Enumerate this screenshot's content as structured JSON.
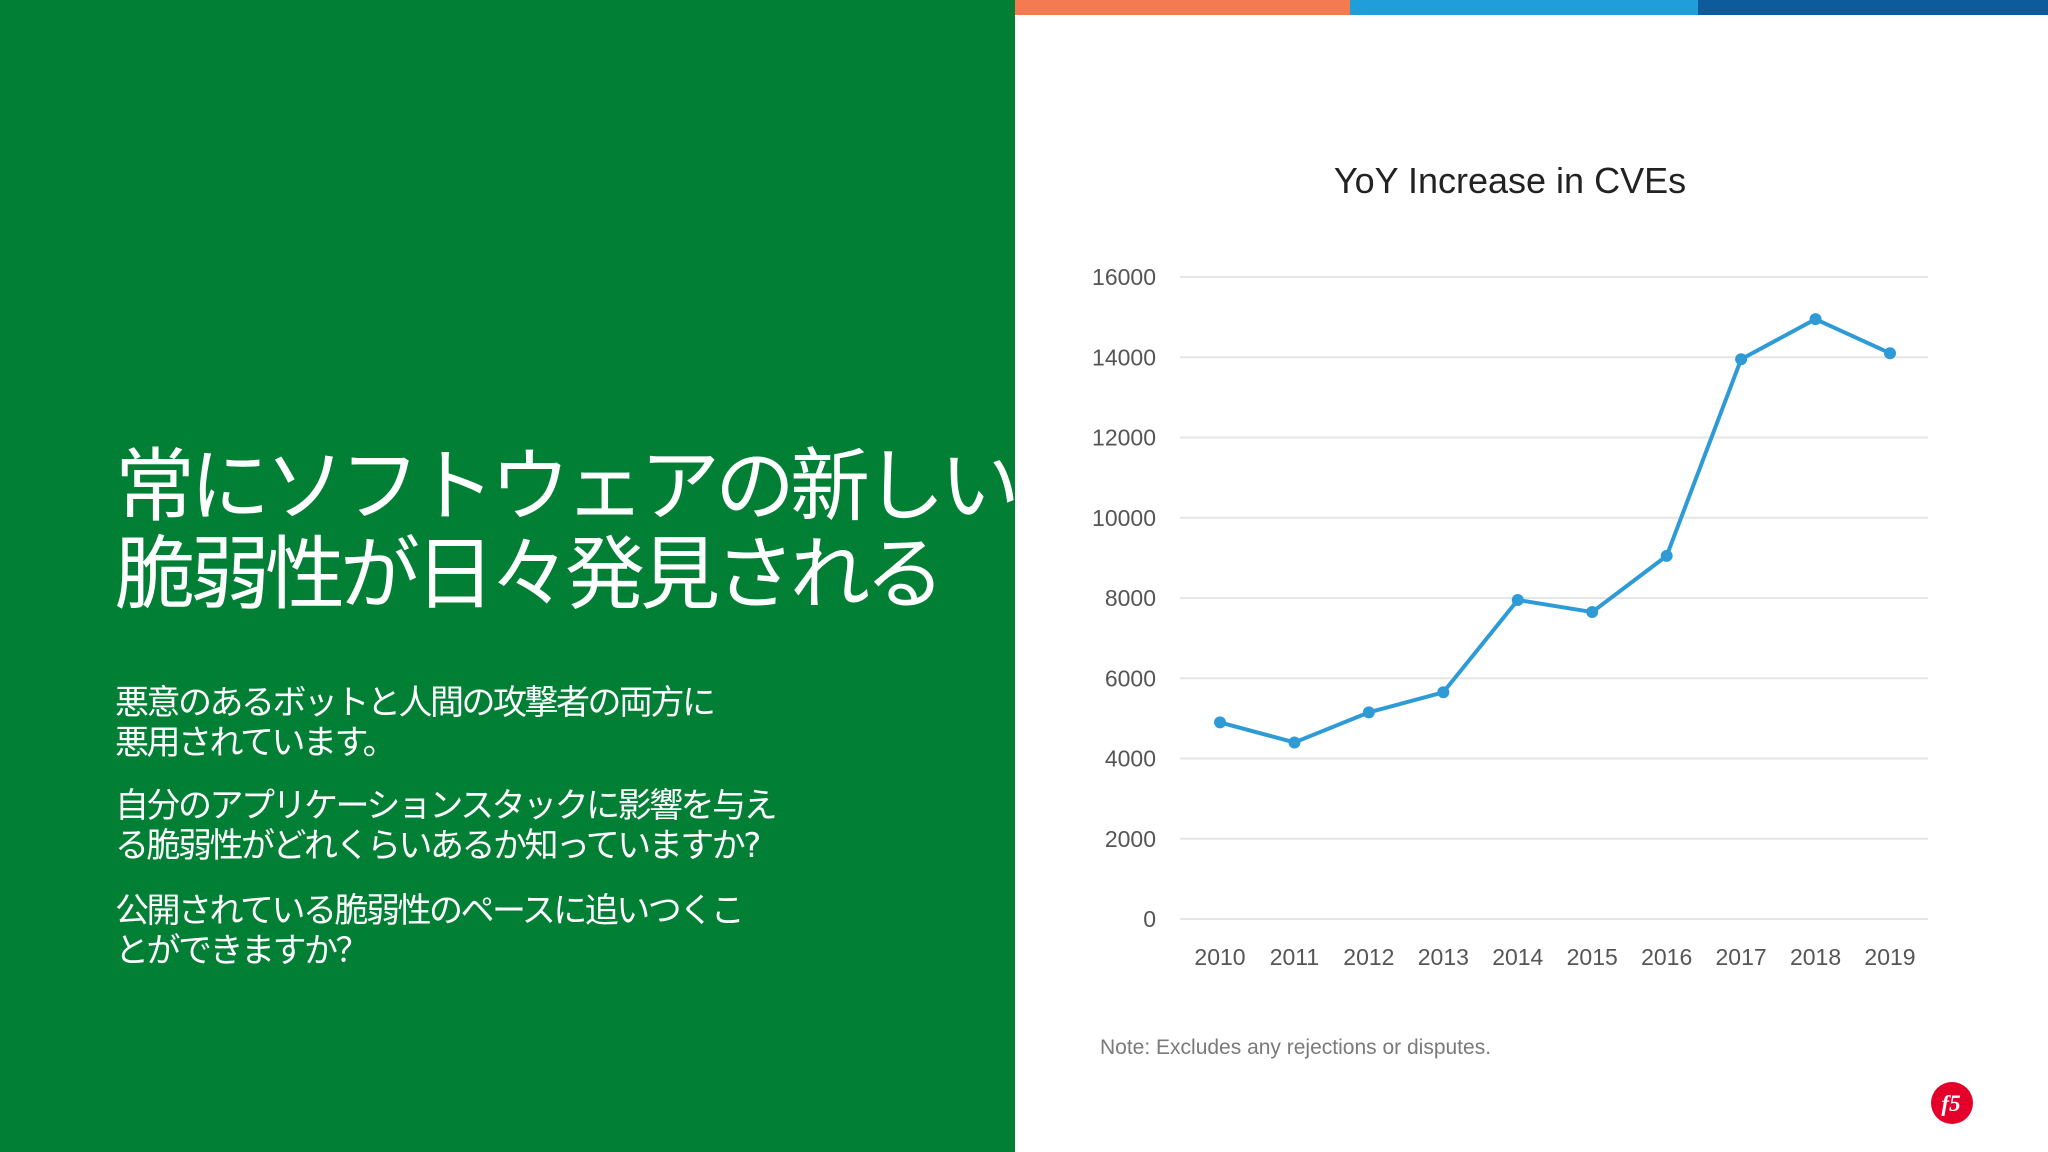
{
  "colors": {
    "left_panel": "#017f35",
    "accent_orange": "#f47a4f",
    "accent_blue": "#1f9fd9",
    "accent_navy": "#0d5b9a",
    "line": "#2f9bd6",
    "logo_red": "#e4002b"
  },
  "headline": {
    "line1": "常にソフトウェアの新しい",
    "line2": "脆弱性が日々発見される"
  },
  "body": {
    "p1": {
      "line1": "悪意のあるボットと人間の攻撃者の両方に",
      "line2": "悪用されています。"
    },
    "p2": {
      "line1": "自分のアプリケーションスタックに影響を与え",
      "line2": "る脆弱性がどれくらいあるか知っていますか?"
    },
    "p3": {
      "line1": "公開されている脆弱性のペースに追いつくこ",
      "line2": "とができますか？"
    }
  },
  "note": "Note: Excludes any rejections or disputes.",
  "logo": {
    "icon": "f5-logo-icon",
    "text": "f5"
  },
  "chart_data": {
    "type": "line",
    "title": "YoY Increase in CVEs",
    "xlabel": "",
    "ylabel": "",
    "categories": [
      "2010",
      "2011",
      "2012",
      "2013",
      "2014",
      "2015",
      "2016",
      "2017",
      "2018",
      "2019"
    ],
    "series": [
      {
        "name": "CVEs",
        "values": [
          4900,
          4400,
          5150,
          5650,
          7950,
          7650,
          9050,
          13950,
          14950,
          14100
        ]
      }
    ],
    "ylim": [
      0,
      16000
    ],
    "yticks": [
      0,
      2000,
      4000,
      6000,
      8000,
      10000,
      12000,
      14000,
      16000
    ],
    "grid": true,
    "legend": "none"
  }
}
